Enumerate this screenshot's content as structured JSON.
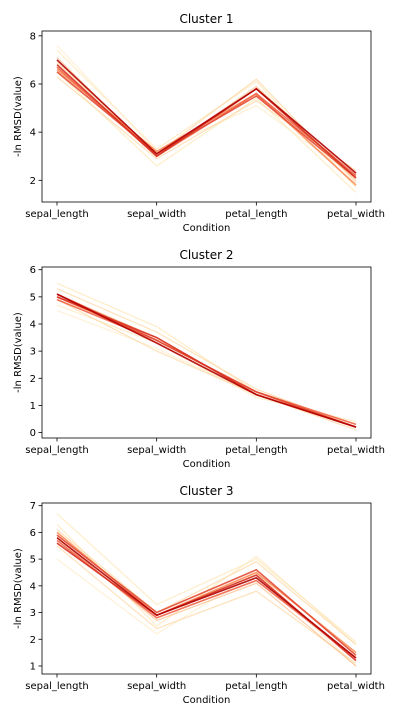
{
  "chart_data": [
    {
      "type": "line",
      "title": "Cluster 1",
      "xlabel": "Condition",
      "ylabel": "-ln RMSD(value)",
      "categories": [
        "sepal_length",
        "sepal_width",
        "petal_length",
        "petal_width"
      ],
      "ylim": [
        1.1,
        8.2
      ],
      "yticks": [
        2,
        4,
        6,
        8
      ],
      "grid": false,
      "series": [
        {
          "values": [
            7.4,
            3.3,
            6.1,
            1.7
          ],
          "color": "#fde6b3"
        },
        {
          "values": [
            7.6,
            3.2,
            5.1,
            2.1
          ],
          "color": "#fdebc6"
        },
        {
          "values": [
            6.5,
            2.6,
            5.4,
            1.5
          ],
          "color": "#fde6b3"
        },
        {
          "values": [
            6.9,
            3.1,
            6.2,
            1.9
          ],
          "color": "#fdd49e"
        },
        {
          "values": [
            6.3,
            2.9,
            5.3,
            2.4
          ],
          "color": "#fdd49e"
        },
        {
          "values": [
            7.1,
            3.0,
            5.9,
            2.0
          ],
          "color": "#fcbb84"
        },
        {
          "values": [
            6.6,
            3.2,
            5.6,
            1.8
          ],
          "color": "#fc8d59"
        },
        {
          "values": [
            6.7,
            3.0,
            5.6,
            2.2
          ],
          "color": "#ef6548"
        },
        {
          "values": [
            6.5,
            3.1,
            5.5,
            2.1
          ],
          "color": "#e34a33"
        },
        {
          "values": [
            6.8,
            3.0,
            5.8,
            2.1
          ],
          "color": "#d7301f"
        },
        {
          "values": [
            7.0,
            3.1,
            5.8,
            2.3
          ],
          "color": "#b30000"
        }
      ]
    },
    {
      "type": "line",
      "title": "Cluster 2",
      "xlabel": "Condition",
      "ylabel": "-ln RMSD(value)",
      "categories": [
        "sepal_length",
        "sepal_width",
        "petal_length",
        "petal_width"
      ],
      "ylim": [
        -0.2,
        6.1
      ],
      "yticks": [
        0,
        1,
        2,
        3,
        4,
        5,
        6
      ],
      "grid": false,
      "series": [
        {
          "values": [
            5.5,
            3.9,
            1.5,
            0.3
          ],
          "color": "#fde6b3"
        },
        {
          "values": [
            4.5,
            3.1,
            1.4,
            0.2
          ],
          "color": "#fdebc6"
        },
        {
          "values": [
            4.7,
            3.3,
            1.3,
            0.4
          ],
          "color": "#fde6b3"
        },
        {
          "values": [
            5.3,
            3.7,
            1.6,
            0.2
          ],
          "color": "#fdd49e"
        },
        {
          "values": [
            4.9,
            3.0,
            1.4,
            0.1
          ],
          "color": "#fdd49e"
        },
        {
          "values": [
            5.1,
            3.5,
            1.4,
            0.2
          ],
          "color": "#fcbb84"
        },
        {
          "values": [
            5.0,
            3.4,
            1.5,
            0.2
          ],
          "color": "#fc8d59"
        },
        {
          "values": [
            4.9,
            3.4,
            1.5,
            0.3
          ],
          "color": "#ef6548"
        },
        {
          "values": [
            5.1,
            3.4,
            1.5,
            0.2
          ],
          "color": "#e34a33"
        },
        {
          "values": [
            5.0,
            3.5,
            1.4,
            0.2
          ],
          "color": "#d7301f"
        },
        {
          "values": [
            5.1,
            3.3,
            1.4,
            0.2
          ],
          "color": "#b30000"
        }
      ]
    },
    {
      "type": "line",
      "title": "Cluster 3",
      "xlabel": "Condition",
      "ylabel": "-ln RMSD(value)",
      "categories": [
        "sepal_length",
        "sepal_width",
        "petal_length",
        "petal_width"
      ],
      "ylim": [
        0.7,
        7.1
      ],
      "yticks": [
        1,
        2,
        3,
        4,
        5,
        6,
        7
      ],
      "grid": false,
      "series": [
        {
          "values": [
            6.7,
            3.3,
            5.0,
            1.9
          ],
          "color": "#fde6b3"
        },
        {
          "values": [
            5.0,
            2.2,
            4.5,
            1.0
          ],
          "color": "#fdebc6"
        },
        {
          "values": [
            6.3,
            2.5,
            5.1,
            1.8
          ],
          "color": "#fde6b3"
        },
        {
          "values": [
            5.5,
            2.4,
            3.8,
            1.1
          ],
          "color": "#fdd49e"
        },
        {
          "values": [
            6.1,
            3.0,
            4.9,
            1.8
          ],
          "color": "#fdd49e"
        },
        {
          "values": [
            5.8,
            2.7,
            4.1,
            1.0
          ],
          "color": "#fcbb84"
        },
        {
          "values": [
            6.0,
            2.9,
            4.5,
            1.5
          ],
          "color": "#fc8d59"
        },
        {
          "values": [
            5.7,
            2.8,
            4.2,
            1.3
          ],
          "color": "#ef6548"
        },
        {
          "values": [
            5.9,
            3.0,
            4.6,
            1.4
          ],
          "color": "#e34a33"
        },
        {
          "values": [
            5.6,
            2.9,
            4.4,
            1.2
          ],
          "color": "#d7301f"
        },
        {
          "values": [
            5.8,
            2.9,
            4.3,
            1.3
          ],
          "color": "#b30000"
        }
      ]
    }
  ]
}
